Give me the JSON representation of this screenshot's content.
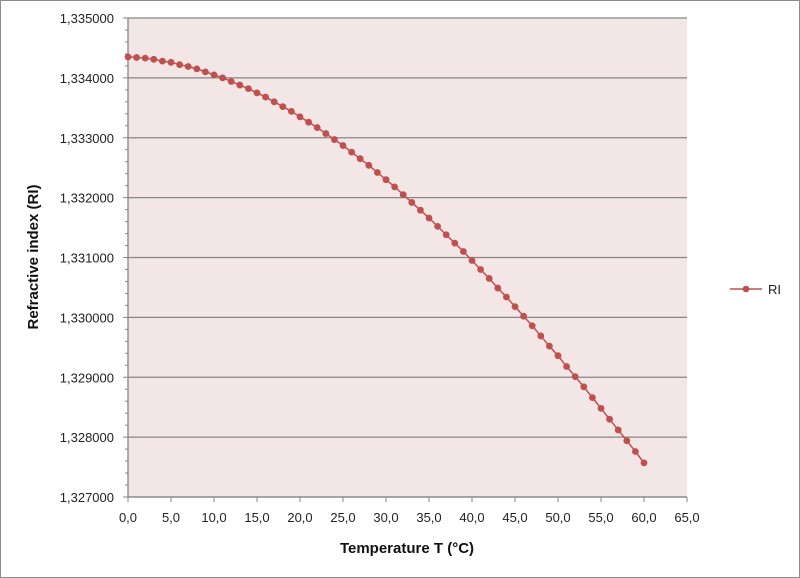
{
  "chart_data": {
    "type": "line",
    "title": "",
    "xlabel": "Temperature T (°C)",
    "ylabel": "Refractive index (RI)",
    "xlim": [
      0,
      65
    ],
    "ylim": [
      1.327,
      1.335
    ],
    "x_ticks": [
      "0,0",
      "5,0",
      "10,0",
      "15,0",
      "20,0",
      "25,0",
      "30,0",
      "35,0",
      "40,0",
      "45,0",
      "50,0",
      "55,0",
      "60,0",
      "65,0"
    ],
    "y_ticks": [
      "1,327000",
      "1,328000",
      "1,329000",
      "1,330000",
      "1,331000",
      "1,332000",
      "1,333000",
      "1,334000",
      "1,335000"
    ],
    "grid": "horizontal",
    "legend": "right",
    "plot_background": "#f2e6e6",
    "series": [
      {
        "name": "RI",
        "color": "#c0504d",
        "marker": "circle",
        "x": [
          0,
          1,
          2,
          3,
          4,
          5,
          6,
          7,
          8,
          9,
          10,
          11,
          12,
          13,
          14,
          15,
          16,
          17,
          18,
          19,
          20,
          21,
          22,
          23,
          24,
          25,
          26,
          27,
          28,
          29,
          30,
          31,
          32,
          33,
          34,
          35,
          36,
          37,
          38,
          39,
          40,
          41,
          42,
          43,
          44,
          45,
          46,
          47,
          48,
          49,
          50,
          51,
          52,
          53,
          54,
          55,
          56,
          57,
          58,
          59,
          60
        ],
        "values": [
          1.33435,
          1.33434,
          1.33433,
          1.33431,
          1.33428,
          1.33426,
          1.33422,
          1.33419,
          1.33415,
          1.3341,
          1.33405,
          1.334,
          1.33394,
          1.33388,
          1.33382,
          1.33375,
          1.33368,
          1.3336,
          1.33352,
          1.33344,
          1.33335,
          1.33326,
          1.33317,
          1.33307,
          1.33297,
          1.33287,
          1.33276,
          1.33265,
          1.33254,
          1.33242,
          1.3323,
          1.33218,
          1.33205,
          1.33192,
          1.33179,
          1.33166,
          1.33152,
          1.33138,
          1.33124,
          1.3311,
          1.33095,
          1.3308,
          1.33065,
          1.33049,
          1.33034,
          1.33018,
          1.33002,
          1.32986,
          1.32969,
          1.32952,
          1.32936,
          1.32918,
          1.32901,
          1.32884,
          1.32866,
          1.32848,
          1.3283,
          1.32812,
          1.32794,
          1.32776,
          1.32757
        ]
      }
    ]
  }
}
